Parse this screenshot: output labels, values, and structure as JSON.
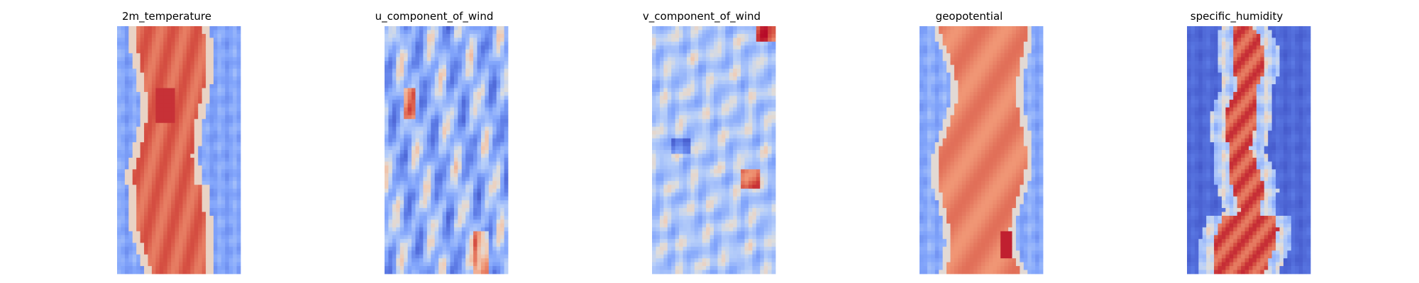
{
  "chart_data": [
    {
      "type": "heatmap",
      "title": "2m_temperature",
      "colormap": "coolwarm",
      "grid": false,
      "axes": "off",
      "description_pattern": "warm band"
    },
    {
      "type": "heatmap",
      "title": "u_component_of_wind",
      "colormap": "coolwarm",
      "grid": false,
      "axes": "off",
      "description_pattern": "streaky"
    },
    {
      "type": "heatmap",
      "title": "v_component_of_wind",
      "colormap": "coolwarm",
      "grid": false,
      "axes": "off",
      "description_pattern": "swirly light"
    },
    {
      "type": "heatmap",
      "title": "geopotential",
      "colormap": "coolwarm",
      "grid": false,
      "axes": "off",
      "description_pattern": "smooth band"
    },
    {
      "type": "heatmap",
      "title": "specific_humidity",
      "colormap": "coolwarm",
      "grid": false,
      "axes": "off",
      "description_pattern": "narrow core"
    }
  ],
  "colors": {
    "cold": "#3b4cc0",
    "neutral": "#dddddd",
    "warm": "#b40426"
  }
}
